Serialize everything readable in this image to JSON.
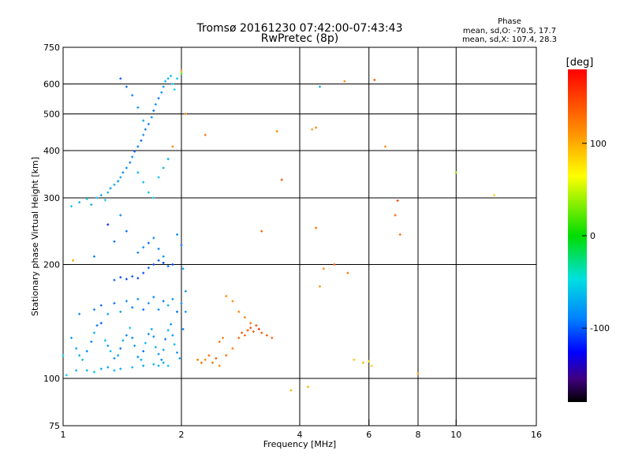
{
  "chart_data": {
    "type": "scatter",
    "title": "Tromsø 20161230 07:42:00-07:43:43",
    "subtitle": "RwPretec (8p)",
    "xlabel": "Frequency [MHz]",
    "ylabel": "Stationary phase Virtual Height [km]",
    "x_scale": "log",
    "y_scale": "log",
    "xlim": [
      1,
      16
    ],
    "ylim": [
      75,
      750
    ],
    "x_ticks": [
      1,
      2,
      4,
      6,
      8,
      10,
      16
    ],
    "y_ticks": [
      75,
      100,
      200,
      300,
      400,
      500,
      600,
      750
    ],
    "x_gridlines": [
      2,
      4,
      6,
      8,
      10
    ],
    "y_gridlines": [
      100,
      200,
      300,
      400,
      500,
      600
    ],
    "colorbar": {
      "label": "[deg]",
      "ticks": [
        100,
        0,
        -100
      ],
      "range": [
        -180,
        180
      ]
    },
    "stats": {
      "heading": "Phase",
      "line_o": "mean, sd,O: -70.5, 17.7",
      "line_x": "mean, sd,X: 107.4, 28.3"
    },
    "series": [
      {
        "values_note": "",
        "points": [
          [
            1.05,
            128,
            -80
          ],
          [
            1.08,
            120,
            -75
          ],
          [
            1.1,
            115,
            -70
          ],
          [
            1.12,
            112,
            -60
          ],
          [
            1.15,
            118,
            -85
          ],
          [
            1.18,
            125,
            -90
          ],
          [
            1.2,
            132,
            -70
          ],
          [
            1.22,
            138,
            -95
          ],
          [
            1.25,
            140,
            -100
          ],
          [
            1.28,
            126,
            -65
          ],
          [
            1.3,
            122,
            -80
          ],
          [
            1.32,
            118,
            -60
          ],
          [
            1.35,
            113,
            -85
          ],
          [
            1.38,
            115,
            -75
          ],
          [
            1.4,
            120,
            -95
          ],
          [
            1.42,
            126,
            -70
          ],
          [
            1.45,
            130,
            -88
          ],
          [
            1.48,
            136,
            -62
          ],
          [
            1.5,
            128,
            -90
          ],
          [
            1.52,
            122,
            -78
          ],
          [
            1.55,
            114,
            -86
          ],
          [
            1.58,
            112,
            -70
          ],
          [
            1.6,
            118,
            -96
          ],
          [
            1.62,
            124,
            -66
          ],
          [
            1.65,
            131,
            -84
          ],
          [
            1.68,
            135,
            -72
          ],
          [
            1.7,
            129,
            -91
          ],
          [
            1.72,
            121,
            -68
          ],
          [
            1.75,
            116,
            -80
          ],
          [
            1.78,
            112,
            -87
          ],
          [
            1.8,
            119,
            -73
          ],
          [
            1.82,
            127,
            -94
          ],
          [
            1.85,
            134,
            -69
          ],
          [
            1.88,
            139,
            -82
          ],
          [
            1.9,
            130,
            -77
          ],
          [
            1.92,
            123,
            -63
          ],
          [
            1.95,
            117,
            -89
          ],
          [
            1.98,
            113,
            -74
          ],
          [
            1.1,
            148,
            -85
          ],
          [
            1.2,
            152,
            -90
          ],
          [
            1.25,
            156,
            -95
          ],
          [
            1.3,
            148,
            -80
          ],
          [
            1.35,
            158,
            -100
          ],
          [
            1.4,
            150,
            -75
          ],
          [
            1.45,
            160,
            -88
          ],
          [
            1.5,
            154,
            -92
          ],
          [
            1.55,
            162,
            -84
          ],
          [
            1.6,
            152,
            -96
          ],
          [
            1.65,
            158,
            -78
          ],
          [
            1.7,
            164,
            -90
          ],
          [
            1.75,
            152,
            -86
          ],
          [
            1.8,
            160,
            -98
          ],
          [
            1.85,
            156,
            -70
          ],
          [
            1.9,
            162,
            -82
          ],
          [
            1.95,
            150,
            -94
          ],
          [
            2.0,
            158,
            -88
          ],
          [
            1.35,
            182,
            -100
          ],
          [
            1.4,
            185,
            -105
          ],
          [
            1.45,
            183,
            -108
          ],
          [
            1.5,
            186,
            -102
          ],
          [
            1.55,
            184,
            -110
          ],
          [
            1.6,
            190,
            -104
          ],
          [
            1.65,
            196,
            -98
          ],
          [
            1.7,
            200,
            -106
          ],
          [
            1.75,
            205,
            -100
          ],
          [
            1.8,
            202,
            -112
          ],
          [
            1.85,
            198,
            -95
          ],
          [
            1.9,
            200,
            -108
          ],
          [
            1.55,
            215,
            -90
          ],
          [
            1.6,
            222,
            -85
          ],
          [
            1.65,
            228,
            -95
          ],
          [
            1.7,
            235,
            -88
          ],
          [
            1.75,
            220,
            -92
          ],
          [
            1.8,
            210,
            -80
          ],
          [
            1.95,
            240,
            -86
          ],
          [
            2.0,
            225,
            -94
          ],
          [
            2.02,
            195,
            -75
          ],
          [
            2.05,
            170,
            -82
          ],
          [
            2.05,
            150,
            -78
          ],
          [
            2.02,
            135,
            -90
          ],
          [
            1.0,
            115,
            -60
          ],
          [
            1.02,
            102,
            -55
          ],
          [
            1.08,
            105,
            -65
          ],
          [
            1.15,
            105,
            -70
          ],
          [
            1.2,
            104,
            -62
          ],
          [
            1.25,
            106,
            -75
          ],
          [
            1.3,
            107,
            -80
          ],
          [
            1.35,
            105,
            -68
          ],
          [
            1.4,
            106,
            -72
          ],
          [
            1.5,
            107,
            -65
          ],
          [
            1.6,
            108,
            -78
          ],
          [
            1.7,
            109,
            -70
          ],
          [
            1.75,
            108,
            -66
          ],
          [
            1.8,
            110,
            -74
          ],
          [
            1.85,
            108,
            -62
          ],
          [
            1.05,
            285,
            -60
          ],
          [
            1.1,
            292,
            -65
          ],
          [
            1.15,
            298,
            -55
          ],
          [
            1.18,
            288,
            -70
          ],
          [
            1.22,
            300,
            -62
          ],
          [
            1.25,
            305,
            -75
          ],
          [
            1.28,
            296,
            -58
          ],
          [
            1.3,
            310,
            -68
          ],
          [
            1.32,
            318,
            -80
          ],
          [
            1.35,
            325,
            -72
          ],
          [
            1.38,
            332,
            -85
          ],
          [
            1.4,
            340,
            -78
          ],
          [
            1.42,
            350,
            -90
          ],
          [
            1.45,
            360,
            -82
          ],
          [
            1.48,
            372,
            -95
          ],
          [
            1.5,
            385,
            -88
          ],
          [
            1.52,
            398,
            -100
          ],
          [
            1.55,
            410,
            -92
          ],
          [
            1.58,
            425,
            -98
          ],
          [
            1.6,
            440,
            -86
          ],
          [
            1.62,
            455,
            -94
          ],
          [
            1.65,
            470,
            -90
          ],
          [
            1.68,
            490,
            -84
          ],
          [
            1.7,
            510,
            -96
          ],
          [
            1.72,
            530,
            -80
          ],
          [
            1.75,
            550,
            -92
          ],
          [
            1.78,
            570,
            -86
          ],
          [
            1.8,
            590,
            -78
          ],
          [
            1.82,
            610,
            -70
          ],
          [
            1.85,
            620,
            -65
          ],
          [
            1.88,
            630,
            -60
          ],
          [
            1.9,
            600,
            -55
          ],
          [
            1.92,
            580,
            -50
          ],
          [
            1.95,
            620,
            -58
          ],
          [
            2.0,
            640,
            20
          ],
          [
            1.4,
            620,
            -100
          ],
          [
            1.45,
            590,
            -95
          ],
          [
            1.5,
            560,
            -88
          ],
          [
            1.55,
            520,
            -80
          ],
          [
            1.6,
            480,
            -76
          ],
          [
            1.55,
            350,
            -70
          ],
          [
            1.6,
            330,
            -65
          ],
          [
            1.65,
            310,
            -60
          ],
          [
            1.7,
            300,
            -58
          ],
          [
            1.75,
            340,
            -62
          ],
          [
            1.8,
            360,
            -68
          ],
          [
            1.85,
            380,
            -72
          ],
          [
            1.2,
            210,
            -90
          ],
          [
            1.3,
            255,
            -115
          ],
          [
            1.35,
            230,
            -95
          ],
          [
            1.4,
            270,
            -88
          ],
          [
            1.45,
            245,
            -92
          ]
        ]
      },
      {
        "values_note": "",
        "points": [
          [
            2.2,
            112,
            125
          ],
          [
            2.25,
            110,
            130
          ],
          [
            2.3,
            112,
            120
          ],
          [
            2.35,
            115,
            135
          ],
          [
            2.4,
            110,
            128
          ],
          [
            2.45,
            113,
            140
          ],
          [
            2.5,
            108,
            118
          ],
          [
            2.6,
            115,
            132
          ],
          [
            2.7,
            120,
            125
          ],
          [
            2.8,
            128,
            138
          ],
          [
            2.85,
            132,
            142
          ],
          [
            2.9,
            130,
            135
          ],
          [
            2.95,
            134,
            145
          ],
          [
            3.0,
            136,
            150
          ],
          [
            3.05,
            133,
            140
          ],
          [
            3.1,
            138,
            148
          ],
          [
            3.15,
            135,
            155
          ],
          [
            3.2,
            132,
            138
          ],
          [
            3.3,
            130,
            142
          ],
          [
            3.4,
            128,
            136
          ],
          [
            2.6,
            165,
            115
          ],
          [
            2.7,
            160,
            120
          ],
          [
            2.8,
            150,
            118
          ],
          [
            2.9,
            145,
            125
          ],
          [
            3.0,
            140,
            130
          ],
          [
            2.5,
            125,
            128
          ],
          [
            2.55,
            128,
            122
          ],
          [
            2.3,
            440,
            130
          ],
          [
            3.5,
            450,
            120
          ],
          [
            3.6,
            335,
            145
          ],
          [
            3.2,
            245,
            135
          ],
          [
            4.3,
            455,
            110
          ],
          [
            4.4,
            460,
            118
          ],
          [
            4.5,
            590,
            -70
          ],
          [
            5.2,
            610,
            120
          ],
          [
            6.2,
            615,
            140
          ],
          [
            6.6,
            410,
            115
          ],
          [
            5.3,
            190,
            125
          ],
          [
            4.9,
            200,
            140
          ],
          [
            4.6,
            195,
            120
          ],
          [
            4.4,
            250,
            130
          ],
          [
            4.5,
            175,
            110
          ],
          [
            4.2,
            95,
            95
          ],
          [
            3.8,
            93,
            100
          ],
          [
            5.5,
            112,
            90
          ],
          [
            5.8,
            110,
            95
          ],
          [
            6.0,
            111,
            80
          ],
          [
            6.1,
            108,
            85
          ],
          [
            7.0,
            270,
            135
          ],
          [
            7.1,
            295,
            150
          ],
          [
            7.2,
            240,
            130
          ],
          [
            8.0,
            103,
            110
          ],
          [
            10.0,
            350,
            40
          ],
          [
            12.5,
            305,
            85
          ],
          [
            2.0,
            650,
            115
          ],
          [
            2.05,
            500,
            120
          ],
          [
            1.9,
            410,
            118
          ],
          [
            1.06,
            205,
            105
          ]
        ]
      }
    ]
  }
}
